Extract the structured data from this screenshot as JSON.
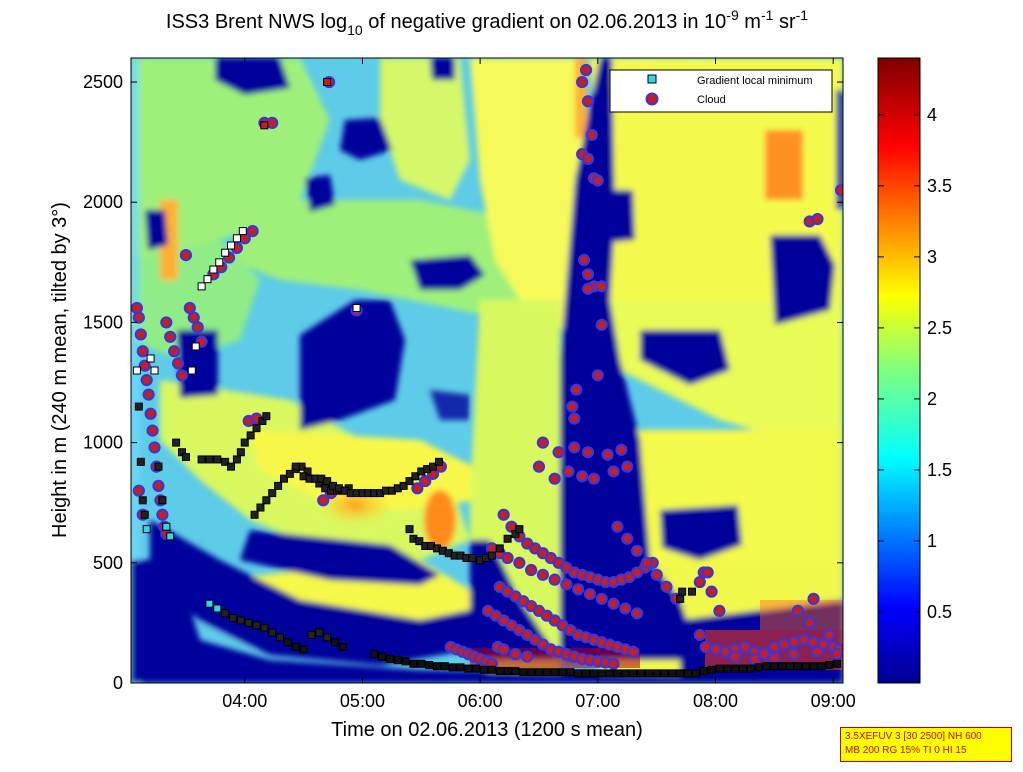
{
  "title_parts": {
    "p1": "ISS3 Brent NWS log",
    "p1_sub": "10",
    "p2": " of negative gradient on 02.06.2013 in 10",
    "p2_sup": "-9",
    "p3": " m",
    "p3_sup": "-1",
    "p4": " sr",
    "p4_sup": "-1"
  },
  "info_box": {
    "line1": "3.5XEFUV 3 [30 2500] NH 600",
    "line2": "MB 200 RG 15% TI 0 HI 15"
  },
  "colors": {
    "background_field": "#5ecbe8",
    "cloud_marker_fill": "#c81e1e",
    "cloud_marker_edge": "#3a36d8",
    "gradient_marker_fill": "#2fd8e6",
    "gradient_marker_edge": "#000000"
  },
  "chart_data": {
    "type": "heatmap",
    "title": "ISS3 Brent NWS log10 of negative gradient on 02.06.2013 in 10^-9 m^-1 sr^-1",
    "xlabel": "Time on 02.06.2013 (1200 s mean)",
    "ylabel": "Height in m (240 m mean, tilted by 3°)",
    "xlim": [
      "03:02",
      "09:05"
    ],
    "ylim": [
      0,
      2600
    ],
    "x_tick_labels": [
      "04:00",
      "05:00",
      "06:00",
      "07:00",
      "08:00",
      "09:00"
    ],
    "x_tick_minutes": [
      240,
      300,
      360,
      420,
      480,
      540
    ],
    "y_tick_labels": [
      "0",
      "500",
      "1000",
      "1500",
      "2000",
      "2500"
    ],
    "y_tick_values": [
      0,
      500,
      1000,
      1500,
      2000,
      2500
    ],
    "colorbar": {
      "colormap": "jet",
      "range": [
        0,
        4.4
      ],
      "tick_labels": [
        "0.5",
        "1",
        "1.5",
        "2",
        "2.5",
        "3",
        "3.5",
        "4"
      ],
      "tick_values": [
        0.5,
        1,
        1.5,
        2,
        2.5,
        3,
        3.5,
        4
      ]
    },
    "legend": {
      "position": "top-right",
      "entries": [
        {
          "label": "Gradient local minimum",
          "marker": "square"
        },
        {
          "label": "Cloud",
          "marker": "circle"
        }
      ]
    },
    "gradient_local_minimum": [
      [
        "03:05",
        1300
      ],
      [
        "03:06",
        1150
      ],
      [
        "03:07",
        920
      ],
      [
        "03:08",
        760
      ],
      [
        "03:09",
        700
      ],
      [
        "03:10",
        640
      ],
      [
        "03:12",
        1350
      ],
      [
        "03:14",
        1300
      ],
      [
        "03:16",
        900
      ],
      [
        "03:18",
        760
      ],
      [
        "03:20",
        650
      ],
      [
        "03:22",
        610
      ],
      [
        "03:25",
        1000
      ],
      [
        "03:28",
        960
      ],
      [
        "03:30",
        940
      ],
      [
        "03:33",
        1300
      ],
      [
        "03:35",
        1400
      ],
      [
        "03:38",
        930
      ],
      [
        "03:42",
        930
      ],
      [
        "03:46",
        930
      ],
      [
        "03:50",
        920
      ],
      [
        "03:53",
        900
      ],
      [
        "03:56",
        930
      ],
      [
        "03:58",
        960
      ],
      [
        "04:00",
        1000
      ],
      [
        "04:03",
        1030
      ],
      [
        "04:06",
        1060
      ],
      [
        "04:09",
        1090
      ],
      [
        "04:11",
        1110
      ],
      [
        "03:38",
        1650
      ],
      [
        "03:41",
        1680
      ],
      [
        "03:44",
        1720
      ],
      [
        "03:47",
        1750
      ],
      [
        "03:50",
        1790
      ],
      [
        "03:53",
        1820
      ],
      [
        "03:56",
        1850
      ],
      [
        "03:59",
        1880
      ],
      [
        "04:10",
        2320
      ],
      [
        "04:42",
        2500
      ],
      [
        "04:57",
        1560
      ],
      [
        "04:05",
        700
      ],
      [
        "04:08",
        730
      ],
      [
        "04:11",
        760
      ],
      [
        "04:14",
        790
      ],
      [
        "04:17",
        820
      ],
      [
        "04:20",
        850
      ],
      [
        "04:23",
        870
      ],
      [
        "04:26",
        890
      ],
      [
        "04:29",
        900
      ],
      [
        "04:32",
        880
      ],
      [
        "04:35",
        850
      ],
      [
        "04:38",
        830
      ],
      [
        "04:41",
        810
      ],
      [
        "04:44",
        800
      ],
      [
        "04:47",
        800
      ],
      [
        "04:50",
        800
      ],
      [
        "04:53",
        810
      ],
      [
        "04:26",
        900
      ],
      [
        "04:30",
        860
      ],
      [
        "04:33",
        850
      ],
      [
        "04:36",
        850
      ],
      [
        "04:39",
        850
      ],
      [
        "04:42",
        840
      ],
      [
        "04:45",
        820
      ],
      [
        "04:48",
        810
      ],
      [
        "04:51",
        800
      ],
      [
        "04:54",
        790
      ],
      [
        "04:57",
        790
      ],
      [
        "05:00",
        790
      ],
      [
        "05:03",
        790
      ],
      [
        "05:06",
        790
      ],
      [
        "05:09",
        790
      ],
      [
        "05:12",
        800
      ],
      [
        "05:15",
        800
      ],
      [
        "05:18",
        810
      ],
      [
        "05:21",
        820
      ],
      [
        "05:24",
        840
      ],
      [
        "05:27",
        860
      ],
      [
        "05:30",
        880
      ],
      [
        "05:33",
        890
      ],
      [
        "05:36",
        900
      ],
      [
        "05:39",
        920
      ],
      [
        "05:24",
        640
      ],
      [
        "05:26",
        600
      ],
      [
        "05:29",
        590
      ],
      [
        "05:32",
        570
      ],
      [
        "05:35",
        570
      ],
      [
        "05:38",
        560
      ],
      [
        "05:41",
        550
      ],
      [
        "05:44",
        540
      ],
      [
        "05:47",
        530
      ],
      [
        "05:50",
        530
      ],
      [
        "05:53",
        520
      ],
      [
        "05:56",
        520
      ],
      [
        "06:00",
        510
      ],
      [
        "06:03",
        520
      ],
      [
        "06:06",
        530
      ],
      [
        "06:10",
        560
      ],
      [
        "06:14",
        600
      ],
      [
        "06:18",
        620
      ],
      [
        "06:20",
        640
      ],
      [
        "03:42",
        330
      ],
      [
        "03:46",
        310
      ],
      [
        "03:50",
        290
      ],
      [
        "03:54",
        270
      ],
      [
        "03:58",
        260
      ],
      [
        "04:02",
        250
      ],
      [
        "04:06",
        240
      ],
      [
        "04:10",
        230
      ],
      [
        "04:14",
        210
      ],
      [
        "04:18",
        190
      ],
      [
        "04:22",
        170
      ],
      [
        "04:26",
        150
      ],
      [
        "04:30",
        140
      ],
      [
        "04:34",
        200
      ],
      [
        "04:38",
        210
      ],
      [
        "04:42",
        190
      ],
      [
        "04:46",
        170
      ],
      [
        "04:50",
        150
      ],
      [
        "05:06",
        120
      ],
      [
        "05:10",
        110
      ],
      [
        "05:14",
        100
      ],
      [
        "05:18",
        95
      ],
      [
        "05:22",
        90
      ],
      [
        "05:26",
        80
      ],
      [
        "05:30",
        80
      ],
      [
        "05:34",
        75
      ],
      [
        "05:38",
        70
      ],
      [
        "05:42",
        70
      ],
      [
        "05:46",
        65
      ],
      [
        "05:50",
        65
      ],
      [
        "05:54",
        60
      ],
      [
        "05:58",
        60
      ],
      [
        "06:02",
        55
      ],
      [
        "06:06",
        55
      ],
      [
        "06:10",
        50
      ],
      [
        "06:14",
        50
      ],
      [
        "06:18",
        50
      ],
      [
        "06:22",
        45
      ],
      [
        "06:26",
        45
      ],
      [
        "06:30",
        45
      ],
      [
        "06:34",
        45
      ],
      [
        "06:38",
        45
      ],
      [
        "06:42",
        45
      ],
      [
        "06:46",
        45
      ],
      [
        "06:50",
        40
      ],
      [
        "06:54",
        40
      ],
      [
        "06:58",
        40
      ],
      [
        "07:02",
        40
      ],
      [
        "07:06",
        40
      ],
      [
        "07:10",
        40
      ],
      [
        "07:14",
        40
      ],
      [
        "07:18",
        40
      ],
      [
        "07:22",
        40
      ],
      [
        "07:26",
        40
      ],
      [
        "07:30",
        40
      ],
      [
        "07:34",
        40
      ],
      [
        "07:38",
        40
      ],
      [
        "07:42",
        40
      ],
      [
        "07:46",
        40
      ],
      [
        "07:50",
        40
      ],
      [
        "07:54",
        50
      ],
      [
        "07:58",
        55
      ],
      [
        "08:02",
        60
      ],
      [
        "08:06",
        60
      ],
      [
        "08:10",
        60
      ],
      [
        "08:14",
        60
      ],
      [
        "08:18",
        60
      ],
      [
        "08:22",
        65
      ],
      [
        "08:26",
        70
      ],
      [
        "08:30",
        70
      ],
      [
        "08:34",
        70
      ],
      [
        "08:38",
        70
      ],
      [
        "08:42",
        70
      ],
      [
        "08:46",
        70
      ],
      [
        "08:50",
        70
      ],
      [
        "08:54",
        70
      ],
      [
        "08:58",
        75
      ],
      [
        "09:02",
        80
      ],
      [
        "07:42",
        350
      ],
      [
        "07:43",
        380
      ],
      [
        "07:48",
        380
      ]
    ],
    "cloud": [
      [
        "03:05",
        1560
      ],
      [
        "03:06",
        1520
      ],
      [
        "03:07",
        1450
      ],
      [
        "03:08",
        1380
      ],
      [
        "03:09",
        1320
      ],
      [
        "03:10",
        1260
      ],
      [
        "03:11",
        1200
      ],
      [
        "03:12",
        1120
      ],
      [
        "03:13",
        1050
      ],
      [
        "03:14",
        980
      ],
      [
        "03:15",
        900
      ],
      [
        "03:16",
        820
      ],
      [
        "03:17",
        760
      ],
      [
        "03:18",
        700
      ],
      [
        "03:19",
        650
      ],
      [
        "03:20",
        620
      ],
      [
        "03:06",
        800
      ],
      [
        "03:08",
        700
      ],
      [
        "03:20",
        1500
      ],
      [
        "03:22",
        1440
      ],
      [
        "03:24",
        1380
      ],
      [
        "03:26",
        1330
      ],
      [
        "03:28",
        1280
      ],
      [
        "03:30",
        1780
      ],
      [
        "03:32",
        1560
      ],
      [
        "03:34",
        1520
      ],
      [
        "03:36",
        1480
      ],
      [
        "03:38",
        1420
      ],
      [
        "03:44",
        1700
      ],
      [
        "03:48",
        1730
      ],
      [
        "03:52",
        1770
      ],
      [
        "03:56",
        1810
      ],
      [
        "04:00",
        1850
      ],
      [
        "04:04",
        1880
      ],
      [
        "04:10",
        2330
      ],
      [
        "04:14",
        2330
      ],
      [
        "04:57",
        1550
      ],
      [
        "04:43",
        2500
      ],
      [
        "04:02",
        1090
      ],
      [
        "04:06",
        1100
      ],
      [
        "04:40",
        760
      ],
      [
        "04:44",
        790
      ],
      [
        "05:40",
        900
      ],
      [
        "05:36",
        870
      ],
      [
        "05:32",
        840
      ],
      [
        "05:28",
        810
      ],
      [
        "06:54",
        2550
      ],
      [
        "06:52",
        2500
      ],
      [
        "06:55",
        2420
      ],
      [
        "06:57",
        2280
      ],
      [
        "06:52",
        2200
      ],
      [
        "06:55",
        2180
      ],
      [
        "06:58",
        2100
      ],
      [
        "07:00",
        2090
      ],
      [
        "06:53",
        1760
      ],
      [
        "06:55",
        1700
      ],
      [
        "06:58",
        1650
      ],
      [
        "06:55",
        1640
      ],
      [
        "07:02",
        1650
      ],
      [
        "07:02",
        1490
      ],
      [
        "07:00",
        1280
      ],
      [
        "06:49",
        1220
      ],
      [
        "06:47",
        1150
      ],
      [
        "06:48",
        1100
      ],
      [
        "08:48",
        1920
      ],
      [
        "09:04",
        2050
      ],
      [
        "08:52",
        1930
      ],
      [
        "06:32",
        1000
      ],
      [
        "06:40",
        960
      ],
      [
        "06:48",
        980
      ],
      [
        "06:55",
        960
      ],
      [
        "07:05",
        950
      ],
      [
        "07:12",
        970
      ],
      [
        "06:30",
        900
      ],
      [
        "06:38",
        850
      ],
      [
        "06:45",
        880
      ],
      [
        "06:52",
        860
      ],
      [
        "06:58",
        850
      ],
      [
        "07:08",
        880
      ],
      [
        "07:15",
        900
      ],
      [
        "06:12",
        700
      ],
      [
        "06:16",
        650
      ],
      [
        "06:20",
        610
      ],
      [
        "06:24",
        580
      ],
      [
        "06:28",
        560
      ],
      [
        "06:32",
        540
      ],
      [
        "06:36",
        520
      ],
      [
        "06:40",
        500
      ],
      [
        "06:44",
        480
      ],
      [
        "06:48",
        460
      ],
      [
        "06:52",
        450
      ],
      [
        "06:56",
        440
      ],
      [
        "07:00",
        430
      ],
      [
        "07:04",
        420
      ],
      [
        "07:08",
        420
      ],
      [
        "07:12",
        430
      ],
      [
        "07:16",
        440
      ],
      [
        "07:20",
        460
      ],
      [
        "07:24",
        480
      ],
      [
        "07:28",
        500
      ],
      [
        "06:10",
        400
      ],
      [
        "06:14",
        380
      ],
      [
        "06:18",
        360
      ],
      [
        "06:22",
        340
      ],
      [
        "06:26",
        320
      ],
      [
        "06:30",
        300
      ],
      [
        "06:34",
        280
      ],
      [
        "06:38",
        260
      ],
      [
        "06:42",
        240
      ],
      [
        "06:46",
        220
      ],
      [
        "06:50",
        200
      ],
      [
        "06:54",
        190
      ],
      [
        "06:58",
        180
      ],
      [
        "07:02",
        170
      ],
      [
        "07:06",
        160
      ],
      [
        "07:10",
        150
      ],
      [
        "07:14",
        140
      ],
      [
        "07:18",
        130
      ],
      [
        "06:06",
        560
      ],
      [
        "06:10",
        540
      ],
      [
        "06:14",
        520
      ],
      [
        "06:20",
        500
      ],
      [
        "06:26",
        470
      ],
      [
        "06:32",
        450
      ],
      [
        "06:38",
        430
      ],
      [
        "06:44",
        410
      ],
      [
        "06:50",
        390
      ],
      [
        "06:56",
        370
      ],
      [
        "07:02",
        350
      ],
      [
        "07:08",
        330
      ],
      [
        "07:14",
        310
      ],
      [
        "07:20",
        290
      ],
      [
        "06:04",
        300
      ],
      [
        "06:08",
        280
      ],
      [
        "06:12",
        260
      ],
      [
        "06:16",
        240
      ],
      [
        "06:20",
        220
      ],
      [
        "06:24",
        200
      ],
      [
        "06:28",
        180
      ],
      [
        "06:32",
        160
      ],
      [
        "06:36",
        140
      ],
      [
        "06:40",
        130
      ],
      [
        "06:44",
        120
      ],
      [
        "06:48",
        110
      ],
      [
        "06:52",
        100
      ],
      [
        "06:56",
        95
      ],
      [
        "07:00",
        90
      ],
      [
        "07:04",
        85
      ],
      [
        "07:08",
        80
      ],
      [
        "05:45",
        150
      ],
      [
        "05:48",
        140
      ],
      [
        "05:51",
        130
      ],
      [
        "05:54",
        120
      ],
      [
        "05:57",
        110
      ],
      [
        "06:00",
        100
      ],
      [
        "06:03",
        90
      ],
      [
        "06:06",
        80
      ],
      [
        "06:09",
        150
      ],
      [
        "06:12",
        140
      ],
      [
        "06:18",
        120
      ],
      [
        "06:24",
        110
      ],
      [
        "07:10",
        650
      ],
      [
        "07:15",
        600
      ],
      [
        "07:20",
        550
      ],
      [
        "07:25",
        500
      ],
      [
        "07:30",
        450
      ],
      [
        "07:35",
        400
      ],
      [
        "07:40",
        350
      ],
      [
        "07:52",
        420
      ],
      [
        "07:54",
        460
      ],
      [
        "07:56",
        460
      ],
      [
        "07:58",
        380
      ],
      [
        "08:02",
        300
      ],
      [
        "07:52",
        200
      ],
      [
        "07:55",
        150
      ],
      [
        "08:00",
        140
      ],
      [
        "08:05",
        130
      ],
      [
        "08:10",
        140
      ],
      [
        "08:15",
        150
      ],
      [
        "08:20",
        130
      ],
      [
        "08:25",
        120
      ],
      [
        "08:30",
        150
      ],
      [
        "08:35",
        160
      ],
      [
        "08:40",
        170
      ],
      [
        "08:45",
        180
      ],
      [
        "08:50",
        170
      ],
      [
        "08:55",
        160
      ],
      [
        "09:00",
        150
      ],
      [
        "09:03",
        140
      ],
      [
        "08:42",
        300
      ],
      [
        "08:50",
        350
      ],
      [
        "08:48",
        250
      ],
      [
        "08:58",
        200
      ],
      [
        "08:10",
        110
      ],
      [
        "08:20",
        100
      ],
      [
        "08:30",
        105
      ],
      [
        "08:40",
        120
      ],
      [
        "08:52",
        130
      ],
      [
        "09:02",
        120
      ]
    ]
  }
}
